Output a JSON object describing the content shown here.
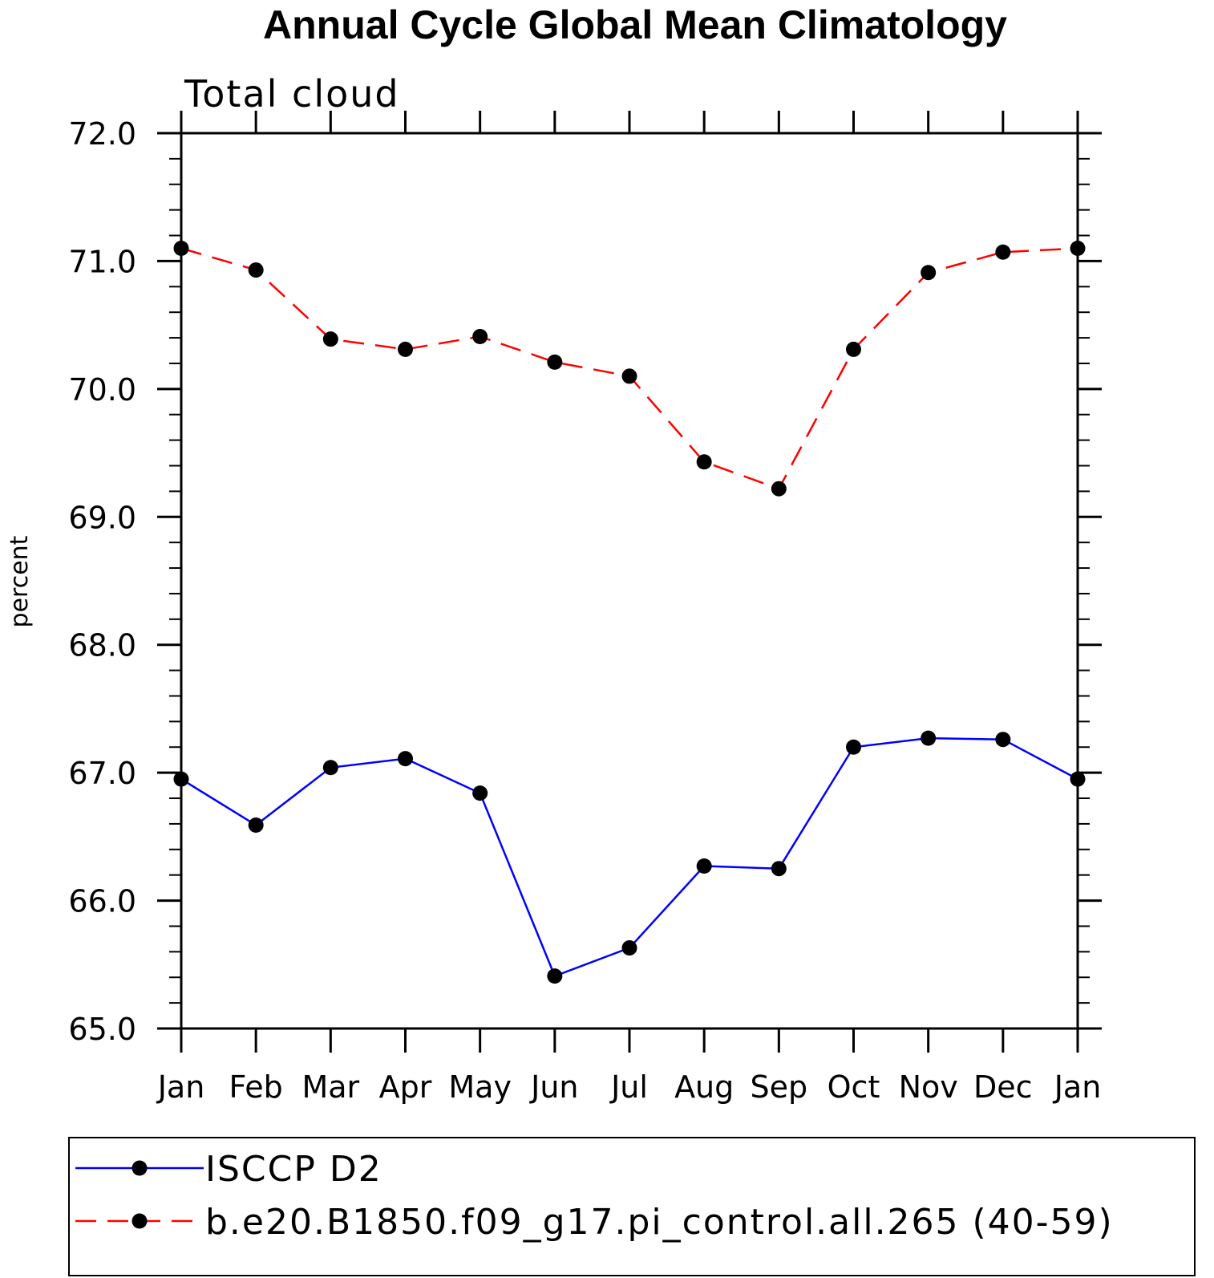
{
  "chart_data": {
    "type": "line",
    "title": "Annual Cycle Global Mean Climatology",
    "subtitle": "Total cloud",
    "xlabel": "",
    "ylabel": "percent",
    "categories": [
      "Jan",
      "Feb",
      "Mar",
      "Apr",
      "May",
      "Jun",
      "Jul",
      "Aug",
      "Sep",
      "Oct",
      "Nov",
      "Dec",
      "Jan"
    ],
    "ylim": [
      65.0,
      72.0
    ],
    "yticks": [
      "65.0",
      "66.0",
      "67.0",
      "68.0",
      "69.0",
      "70.0",
      "71.0",
      "72.0"
    ],
    "grid": false,
    "legend_position": "bottom",
    "series": [
      {
        "name": "ISCCP D2",
        "color": "#0000ff",
        "line_style": "solid",
        "marker": "filled-circle",
        "values": [
          66.95,
          66.59,
          67.04,
          67.11,
          66.84,
          65.41,
          65.63,
          66.27,
          66.25,
          67.2,
          67.27,
          67.26,
          66.95
        ]
      },
      {
        "name": "b.e20.B1850.f09_g17.pi_control.all.265 (40-59)",
        "color": "#ff0000",
        "line_style": "dashed",
        "marker": "filled-circle",
        "values": [
          71.1,
          70.93,
          70.39,
          70.31,
          70.41,
          70.21,
          70.1,
          69.43,
          69.22,
          70.31,
          70.91,
          71.07,
          71.1
        ]
      }
    ]
  }
}
